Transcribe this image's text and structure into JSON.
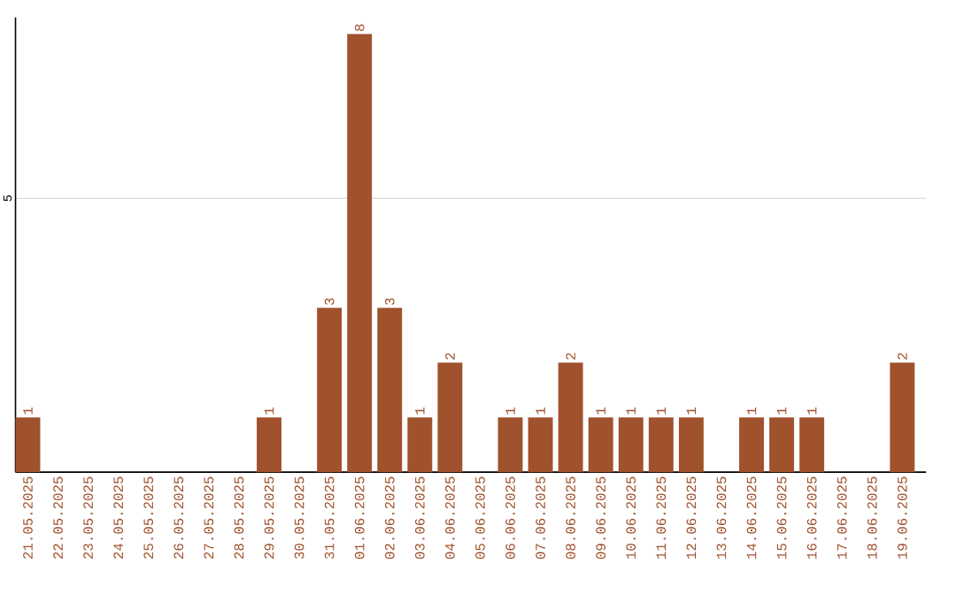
{
  "chart_data": {
    "type": "bar",
    "categories": [
      "21.05.2025",
      "22.05.2025",
      "23.05.2025",
      "24.05.2025",
      "25.05.2025",
      "26.05.2025",
      "27.05.2025",
      "28.05.2025",
      "29.05.2025",
      "30.05.2025",
      "31.05.2025",
      "01.06.2025",
      "02.06.2025",
      "03.06.2025",
      "04.06.2025",
      "05.06.2025",
      "06.06.2025",
      "07.06.2025",
      "08.06.2025",
      "09.06.2025",
      "10.06.2025",
      "11.06.2025",
      "12.06.2025",
      "13.06.2025",
      "14.06.2025",
      "15.06.2025",
      "16.06.2025",
      "17.06.2025",
      "18.06.2025",
      "19.06.2025"
    ],
    "values": [
      1,
      0,
      0,
      0,
      0,
      0,
      0,
      0,
      1,
      0,
      3,
      8,
      3,
      1,
      2,
      0,
      1,
      1,
      2,
      1,
      1,
      1,
      1,
      0,
      1,
      1,
      1,
      0,
      0,
      2
    ],
    "value_labels": [
      "1",
      null,
      null,
      null,
      null,
      null,
      null,
      null,
      "1",
      null,
      "3",
      "8",
      "3",
      "1",
      "2",
      null,
      "1",
      "1",
      "2",
      "1",
      "1",
      "1",
      "1",
      null,
      "1",
      "1",
      "1",
      null,
      null,
      "2"
    ],
    "color": "#a0522d",
    "ylim": [
      0,
      8.3
    ],
    "yticks": [
      5
    ],
    "grid": "y"
  }
}
